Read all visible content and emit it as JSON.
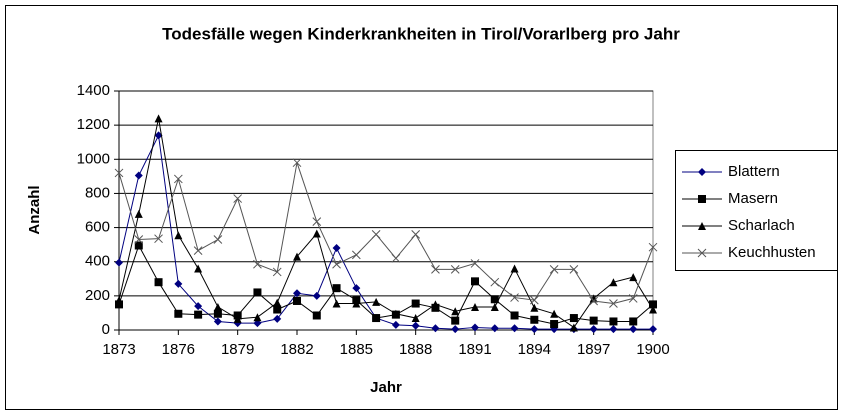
{
  "chart_data": {
    "type": "line",
    "title": "Todesfälle wegen Kinderkrankheiten in Tirol/Vorarlberg pro Jahr",
    "x_label": "Jahr",
    "y_label": "Anzahl",
    "x": [
      1873,
      1874,
      1875,
      1876,
      1877,
      1878,
      1879,
      1880,
      1881,
      1882,
      1883,
      1884,
      1885,
      1886,
      1887,
      1888,
      1889,
      1890,
      1891,
      1892,
      1893,
      1894,
      1895,
      1896,
      1897,
      1898,
      1899,
      1900
    ],
    "xlim": [
      1873,
      1900
    ],
    "xticks": [
      1873,
      1876,
      1879,
      1882,
      1885,
      1888,
      1891,
      1894,
      1897,
      1900
    ],
    "ylim": [
      0,
      1400
    ],
    "yticks": [
      0,
      200,
      400,
      600,
      800,
      1000,
      1200,
      1400
    ],
    "grid": true,
    "legend": "right",
    "series": [
      {
        "name": "Blattern",
        "color": "#000080",
        "marker": "diamond",
        "values": [
          395,
          905,
          1140,
          270,
          140,
          50,
          40,
          40,
          65,
          215,
          200,
          480,
          245,
          70,
          30,
          25,
          10,
          5,
          15,
          10,
          10,
          5,
          5,
          5,
          5,
          5,
          5,
          5
        ]
      },
      {
        "name": "Masern",
        "color": "#000000",
        "marker": "square",
        "values": [
          150,
          495,
          280,
          95,
          90,
          95,
          85,
          220,
          120,
          170,
          85,
          245,
          175,
          70,
          90,
          155,
          130,
          55,
          285,
          180,
          85,
          60,
          35,
          70,
          55,
          50,
          50,
          150
        ]
      },
      {
        "name": "Scharlach",
        "color": "#000000",
        "marker": "triangle",
        "values": [
          175,
          680,
          1240,
          555,
          360,
          135,
          65,
          75,
          160,
          430,
          565,
          155,
          155,
          165,
          95,
          70,
          150,
          110,
          135,
          135,
          360,
          130,
          95,
          15,
          185,
          280,
          310,
          120
        ]
      },
      {
        "name": "Keuchhusten",
        "color": "#555555",
        "marker": "x",
        "values": [
          920,
          530,
          535,
          885,
          465,
          530,
          770,
          385,
          340,
          980,
          635,
          385,
          440,
          560,
          420,
          560,
          355,
          355,
          390,
          280,
          190,
          175,
          355,
          355,
          170,
          155,
          185,
          485
        ]
      }
    ]
  }
}
